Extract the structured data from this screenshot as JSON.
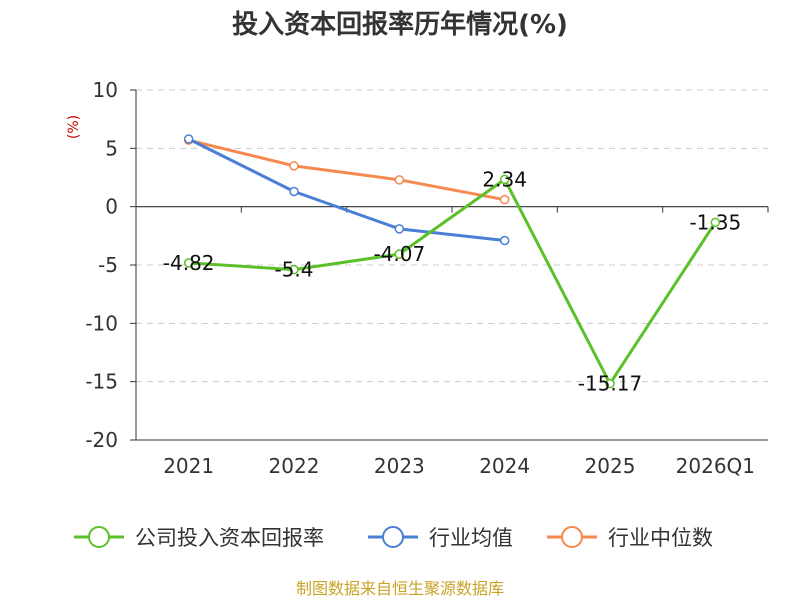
{
  "chart_data": {
    "type": "line",
    "title": "投入资本回报率历年情况(%)",
    "ylabel": "(%)",
    "xlabel": "",
    "ylim": [
      -20,
      10
    ],
    "yticks": [
      "10",
      "5",
      "0",
      "-5",
      "-10",
      "-15",
      "-20"
    ],
    "ytick_values": [
      10,
      5,
      0,
      -5,
      -10,
      -15,
      -20
    ],
    "categories": [
      "2021",
      "2022",
      "2023",
      "2024",
      "2025",
      "2026Q1"
    ],
    "grid": true,
    "legend_position": "bottom",
    "series": [
      {
        "name": "公司投入资本回报率",
        "color": "#5cc02a",
        "values": [
          -4.82,
          -5.4,
          -4.07,
          2.34,
          -15.17,
          -1.35
        ],
        "labels": [
          "-4.82",
          "-5.4",
          "-4.07",
          "2.34",
          "-15.17",
          "-1.35"
        ]
      },
      {
        "name": "行业均值",
        "color": "#4a7fd6",
        "values": [
          5.8,
          1.3,
          -1.9,
          -2.9,
          null,
          null
        ]
      },
      {
        "name": "行业中位数",
        "color": "#f5894f",
        "values": [
          5.7,
          3.5,
          2.3,
          0.6,
          null,
          null
        ]
      }
    ],
    "source": "制图数据来自恒生聚源数据库"
  }
}
